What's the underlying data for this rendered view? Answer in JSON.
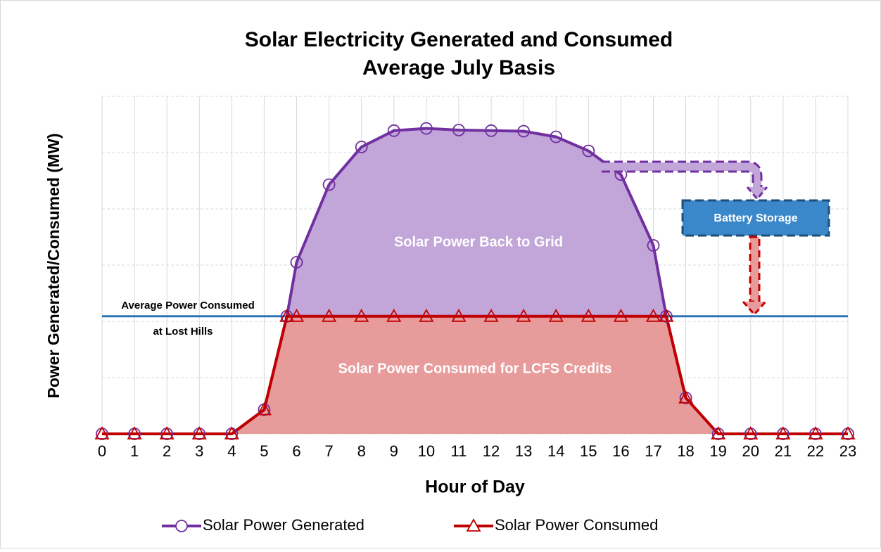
{
  "chart_data": {
    "type": "line",
    "title": "Solar Electricity Generated and Consumed",
    "subtitle": "Average July Basis",
    "x_label": "Hour of Day",
    "y_label": "Power Generated/Consumed (MW)",
    "x": [
      0,
      1,
      2,
      3,
      4,
      5,
      5.7,
      6,
      7,
      8,
      9,
      10,
      11,
      12,
      13,
      14,
      15,
      16,
      17,
      17.4,
      18,
      19,
      20,
      21,
      22,
      23
    ],
    "series": [
      {
        "name": "Solar Power Generated",
        "color": "#7030a0",
        "fill": "#c3a6d9",
        "marker": "circle",
        "values": [
          0,
          0,
          0,
          0,
          0,
          0.43,
          2.09,
          3.05,
          4.43,
          5.1,
          5.39,
          5.43,
          5.4,
          5.39,
          5.38,
          5.28,
          5.03,
          4.61,
          3.35,
          2.09,
          0.64,
          0,
          0,
          0,
          0,
          0
        ]
      },
      {
        "name": "Solar Power Consumed",
        "color": "#c00000",
        "fill": "#e79b9b",
        "marker": "triangle",
        "values": [
          0,
          0,
          0,
          0,
          0,
          0.43,
          2.09,
          2.09,
          2.09,
          2.09,
          2.09,
          2.09,
          2.09,
          2.09,
          2.09,
          2.09,
          2.09,
          2.09,
          2.09,
          2.09,
          0.64,
          0,
          0,
          0,
          0,
          0
        ]
      }
    ],
    "average_line": {
      "value": 2.09,
      "color": "#2e75b6",
      "label": "Average Power Consumed",
      "sublabel": "at Lost Hills"
    },
    "annotations": [
      "Solar Power Back to Grid",
      "Solar Power Consumed for LCFS Credits",
      "Battery Storage"
    ],
    "xlim": [
      0,
      23
    ],
    "xticks": [
      0,
      1,
      2,
      3,
      4,
      5,
      6,
      7,
      8,
      9,
      10,
      11,
      12,
      13,
      14,
      15,
      16,
      17,
      18,
      19,
      20,
      21,
      22,
      23
    ],
    "ylim": [
      0,
      6
    ],
    "yticks": [
      0,
      1,
      2,
      3,
      4,
      5,
      6
    ],
    "grid": true,
    "legend": "bottom"
  }
}
